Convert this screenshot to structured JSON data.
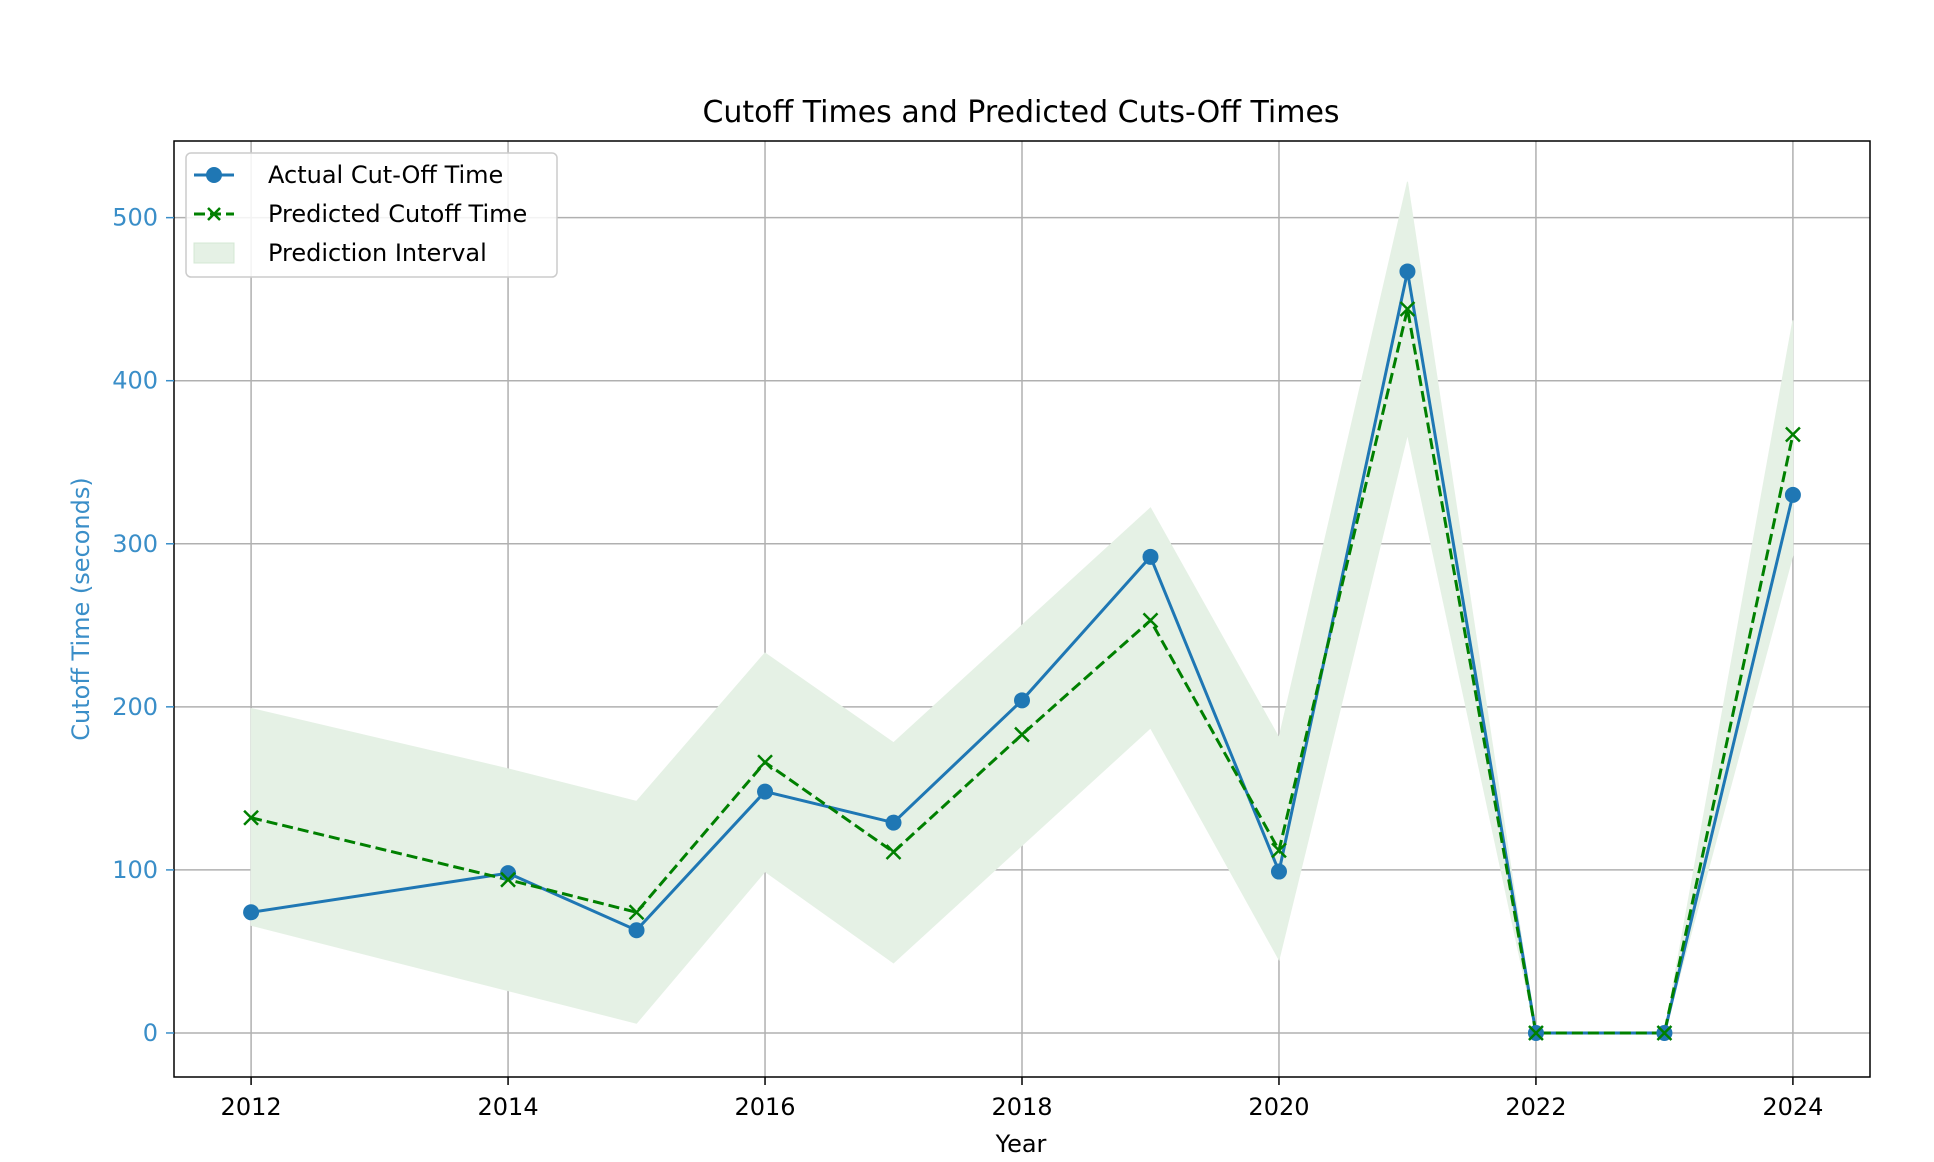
{
  "chart_data": {
    "type": "line",
    "title": "Cutoff Times and Predicted Cuts-Off Times",
    "xlabel": "Year",
    "ylabel": "Cutoff Time (seconds)",
    "xlim": [
      2011.4,
      2024.6
    ],
    "ylim": [
      -27,
      547
    ],
    "x_ticks": [
      2012,
      2014,
      2016,
      2018,
      2020,
      2022,
      2024
    ],
    "y_ticks": [
      0,
      100,
      200,
      300,
      400,
      500
    ],
    "grid": true,
    "legend_position": "upper-left",
    "x": [
      2012,
      2014,
      2015,
      2016,
      2017,
      2018,
      2019,
      2020,
      2021,
      2022,
      2023,
      2024
    ],
    "series": [
      {
        "name": "Actual Cut-Off Time",
        "style": "solid-circle",
        "color": "#1f77b4",
        "values": [
          74,
          98,
          63,
          148,
          129,
          204,
          292,
          99,
          467,
          0,
          0,
          330
        ]
      },
      {
        "name": "Predicted Cutoff Time",
        "style": "dashed-x",
        "color": "#008000",
        "values": [
          132,
          94,
          74,
          166,
          111,
          183,
          253,
          112,
          444,
          0,
          0,
          367
        ]
      }
    ],
    "interval": {
      "name": "Prediction Interval",
      "color": "#e5f1e5",
      "lower": [
        66,
        26,
        6,
        99,
        43,
        115,
        187,
        45,
        367,
        0,
        0,
        293
      ],
      "upper": [
        199,
        162,
        142,
        233,
        178,
        250,
        322,
        181,
        522,
        0,
        0,
        437
      ]
    },
    "axis_colors": {
      "y_label": "#3a8ec8",
      "frame": "#000000",
      "grid": "#b0b0b0"
    }
  }
}
